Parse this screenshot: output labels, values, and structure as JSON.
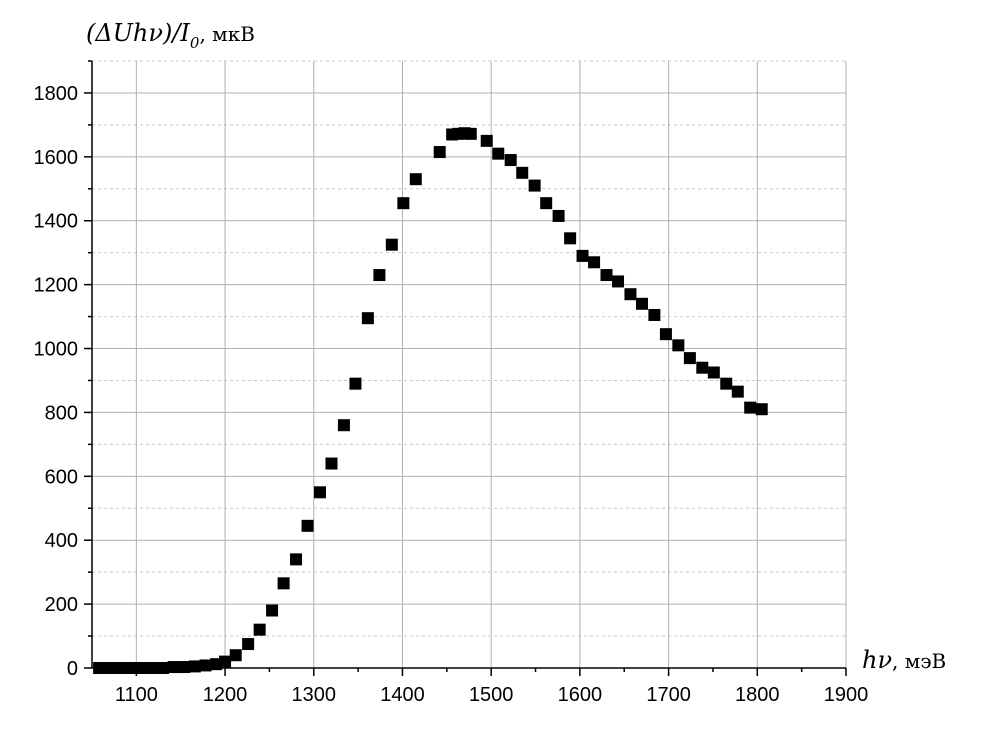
{
  "chart_data": {
    "type": "scatter",
    "title": "",
    "ylabel": {
      "lead": "(ΔUhν)/I",
      "subscript": "0",
      "unit": ", мкВ"
    },
    "xlabel": {
      "lead": "hν",
      "unit": ", мэВ"
    },
    "xlim": [
      1050,
      1900
    ],
    "ylim": [
      0,
      1900
    ],
    "x_ticks": [
      1100,
      1200,
      1300,
      1400,
      1500,
      1600,
      1700,
      1800,
      1900
    ],
    "y_ticks": [
      0,
      200,
      400,
      600,
      800,
      1000,
      1200,
      1400,
      1600,
      1800
    ],
    "grid": true,
    "marker": "square",
    "marker_color": "#000000",
    "series": [
      {
        "x": [
          1058,
          1070,
          1082,
          1094,
          1106,
          1118,
          1130,
          1142,
          1154,
          1166,
          1178,
          1190,
          1200,
          1212,
          1226,
          1239,
          1253,
          1266,
          1280,
          1293,
          1307,
          1320,
          1334,
          1347,
          1361,
          1374,
          1388,
          1401,
          1415,
          1442,
          1456,
          1463,
          1470,
          1477,
          1495,
          1508,
          1522,
          1535,
          1549,
          1562,
          1576,
          1589,
          1603,
          1616,
          1630,
          1643,
          1657,
          1670,
          1684,
          1697,
          1711,
          1724,
          1738,
          1751,
          1765,
          1778,
          1792,
          1805
        ],
        "y": [
          0,
          0,
          0,
          0,
          0,
          0,
          0,
          3,
          3,
          5,
          8,
          12,
          20,
          40,
          75,
          120,
          180,
          265,
          340,
          445,
          550,
          640,
          760,
          890,
          1095,
          1230,
          1325,
          1455,
          1530,
          1615,
          1670,
          1672,
          1674,
          1672,
          1650,
          1610,
          1590,
          1550,
          1510,
          1455,
          1415,
          1345,
          1290,
          1270,
          1230,
          1210,
          1170,
          1140,
          1105,
          1045,
          1010,
          970,
          940,
          925,
          890,
          865,
          815,
          810
        ]
      }
    ]
  }
}
